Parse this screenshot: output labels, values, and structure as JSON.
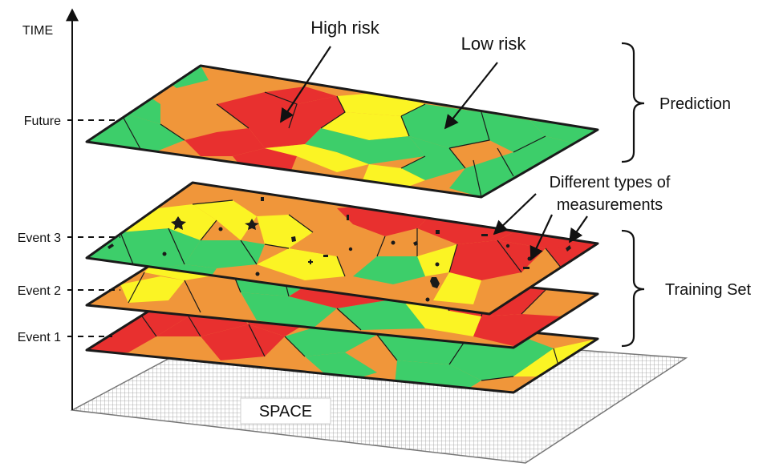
{
  "axes": {
    "time_label": "TIME",
    "space_label": "SPACE"
  },
  "time_ticks": [
    "Future",
    "Event 3",
    "Event 2",
    "Event 1"
  ],
  "annotations": {
    "high_risk": "High risk",
    "low_risk": "Low risk",
    "measurements_line1": "Different types of",
    "measurements_line2": "measurements"
  },
  "groups": {
    "prediction": "Prediction",
    "training_set": "Training Set"
  },
  "colors": {
    "high_risk": "#e8302f",
    "medium_risk": "#f0963a",
    "low_medium_risk": "#fbf424",
    "low_risk": "#3dce6a",
    "base_grid": "#d9d9d9"
  }
}
